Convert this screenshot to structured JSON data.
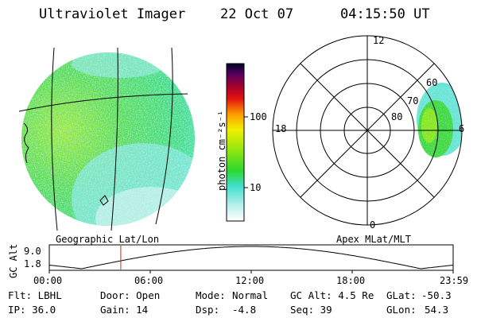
{
  "header": {
    "instrument": "Ultraviolet Imager",
    "date": "22 Oct 07",
    "time": "04:15:50 UT"
  },
  "geo_panel": {
    "label": "Geographic Lat/Lon"
  },
  "colorbar": {
    "unit_label": "photon cm⁻²s⁻¹",
    "ticks": [
      "100",
      "10"
    ]
  },
  "polar_panel": {
    "label": "Apex MLat/MLT",
    "mlt_labels": {
      "top": "12",
      "left": "18",
      "right": "6",
      "bottom": "0"
    },
    "mlat_labels": [
      "60",
      "70",
      "80"
    ]
  },
  "altitude_strip": {
    "ylabel": "GC Alt",
    "y_ticks": [
      "9.0",
      "1.8"
    ],
    "x_ticks": [
      "00:00",
      "06:00",
      "12:00",
      "18:00",
      "23:59"
    ],
    "current_time_fraction": 0.177
  },
  "status": {
    "filter": "Flt: LBHL",
    "door": "Door: Open",
    "mode_label": "Mode:",
    "mode_value": "Normal",
    "gc_alt": "GC Alt: 4.5 Re",
    "glat_label": "GLat:",
    "glat_value": "-50.3",
    "ip": "IP: 36.0",
    "gain": "Gain: 14",
    "dsp_label": "Dsp:",
    "dsp_value": "-4.8",
    "seq": "Seq: 39",
    "glon_label": "GLon:",
    "glon_value": "54.3"
  },
  "colors": {
    "aurora_green": "#2ed82e",
    "cyan": "#40e0d0",
    "yellow_green": "#a8e80c"
  }
}
